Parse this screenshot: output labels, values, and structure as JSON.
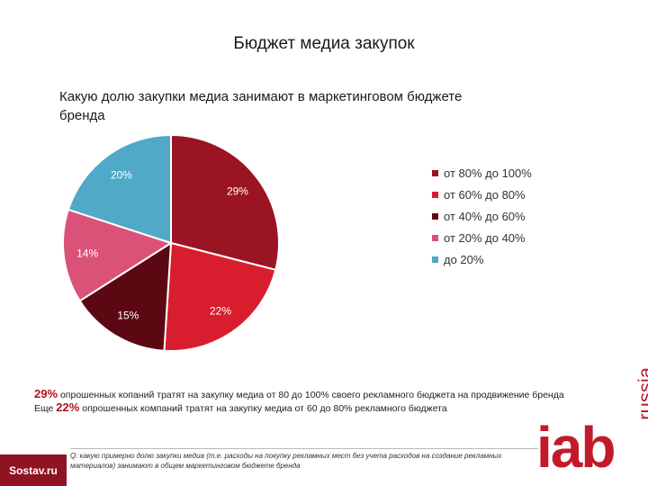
{
  "header": {
    "title": "Бюджет медиа закупок",
    "question": "Какую долю закупки медиа занимают в маркетинговом бюджете бренда"
  },
  "chart_data": {
    "type": "pie",
    "title": "Какую долю закупки медиа занимают в маркетинговом бюджете бренда",
    "legend_position": "right",
    "slices": [
      {
        "label": "от 80% до 100%",
        "value": 29,
        "value_label": "29%",
        "color": "#9b1424"
      },
      {
        "label": "от 60% до 80%",
        "value": 22,
        "value_label": "22%",
        "color": "#d81e2e"
      },
      {
        "label": "от 40% до 60%",
        "value": 15,
        "value_label": "15%",
        "color": "#5c0813"
      },
      {
        "label": "от 20% до 40%",
        "value": 14,
        "value_label": "14%",
        "color": "#db5279"
      },
      {
        "label": "до 20%",
        "value": 20,
        "value_label": "20%",
        "color": "#4fa9c7"
      }
    ]
  },
  "stats": {
    "line1_pct": "29%",
    "line1_text": "опрошенных копаний тратят на закупку медиа от 80 до 100% своего рекламного бюджета на продвижение бренда",
    "line2_prefix": "Еще",
    "line2_pct": "22%",
    "line2_text": "опрошенных компаний тратят на закупку медиа от 60 до 80% рекламного бюджета"
  },
  "footer": {
    "source_logo": "Sostav.ru",
    "note": "Q: какую примерно долю закупки медиа (т.е. расходы на покупку рекламных мест без учета расходов на создание рекламных материалов) занимают в общем маркетинговом бюджете бренда",
    "brand_main": "iab",
    "brand_sub": "russia"
  }
}
